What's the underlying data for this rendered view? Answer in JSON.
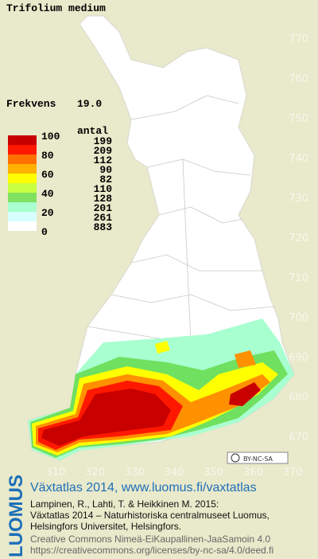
{
  "title": "Trifolium medium",
  "frequency": {
    "label": "Frekvens",
    "value": "19.0"
  },
  "legend": {
    "scale_labels": [
      100,
      80,
      60,
      40,
      20,
      0
    ],
    "count_header": "antal",
    "counts": [
      199,
      209,
      112,
      90,
      82,
      110,
      128,
      201,
      261,
      883
    ]
  },
  "grid": {
    "y_labels": [
      770,
      760,
      750,
      740,
      730,
      720,
      710,
      700,
      690,
      680,
      670
    ],
    "x_labels": [
      310,
      320,
      330,
      340,
      350,
      360,
      370
    ]
  },
  "license_badge": "BY-NC-SA",
  "footer": {
    "brand": "LUOMUS",
    "heading": "Växtatlas 2014, www.luomus.fi/vaxtatlas",
    "lines": [
      "Lampinen, R., Lahti, T. & Heikkinen M. 2015:",
      "Växtatlas 2014 – Naturhistoriska centralmuseet Luomus,",
      "Helsingfors Universitet, Helsingfors."
    ],
    "license_lines": [
      "Creative Commons Nimeä-EiKaupallinen-JaaSamoin 4.0",
      "https://creativecommons.org/licenses/by-nc-sa/4.0/deed.fi"
    ]
  }
}
